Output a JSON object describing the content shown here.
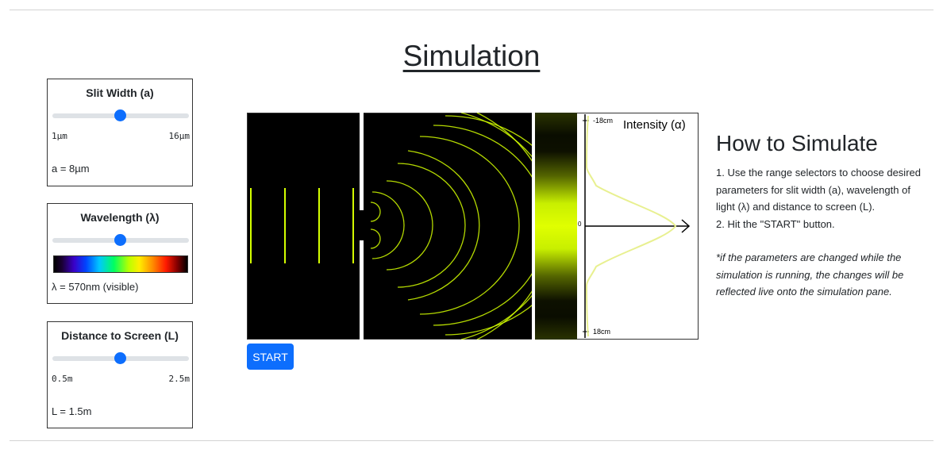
{
  "page": {
    "title": "Simulation"
  },
  "controls": {
    "slit_width": {
      "title": "Slit Width (a)",
      "min_label": "1µm",
      "max_label": "16µm",
      "value_text": "a = 8µm",
      "fraction": 0.5
    },
    "wavelength": {
      "title": "Wavelength (λ)",
      "value_text": "λ = 570nm (visible)",
      "fraction": 0.5
    },
    "distance": {
      "title": "Distance to Screen (L)",
      "min_label": "0.5m",
      "max_label": "2.5m",
      "value_text": "L = 1.5m",
      "fraction": 0.5
    }
  },
  "simulation": {
    "intensity_label": "Intensity (α)",
    "top_tick": "-18cm",
    "center_tick": "0",
    "bottom_tick": "18cm",
    "wave_color": "#d4ff00"
  },
  "start_button": {
    "label": "START"
  },
  "howto": {
    "title": "How to Simulate",
    "steps": [
      "1. Use the range selectors to choose desired",
      "parameters for slit width (a), wavelength of",
      "light (λ) and distance to screen (L).",
      "2. Hit the \"START\" button."
    ],
    "note": [
      "*if the parameters are changed while the",
      "simulation is running, the changes will be",
      "reflected live onto the simulation pane."
    ]
  },
  "colors": {
    "accent": "#0d6efd",
    "wave": "#d4ff00"
  }
}
